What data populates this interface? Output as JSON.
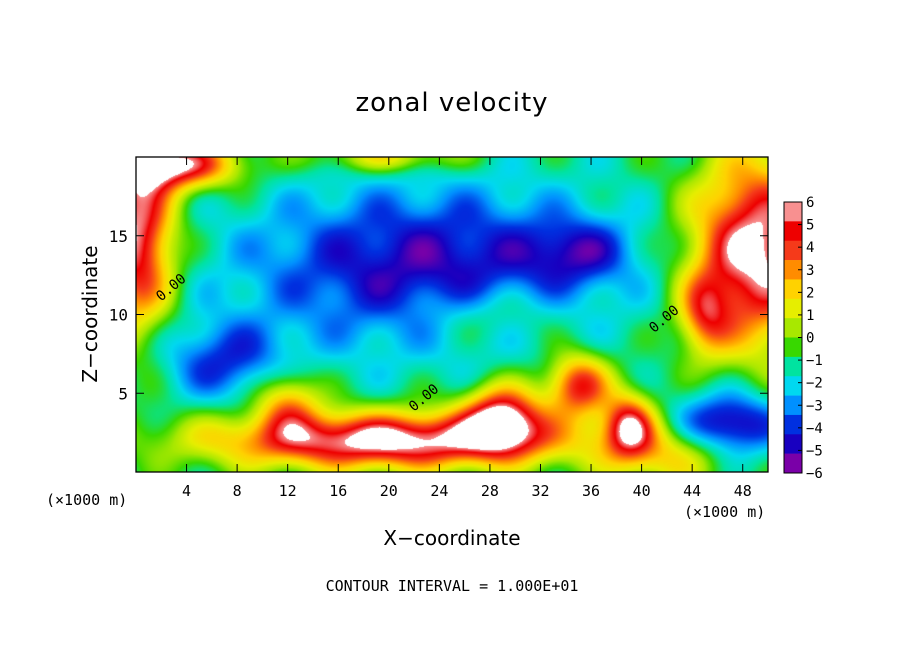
{
  "chart_data": {
    "type": "heatmap",
    "title": "zonal velocity",
    "xlabel": "X−coordinate",
    "ylabel": "Z−coordinate",
    "x_unit_label": "(×1000 m)",
    "x_ticks": [
      4,
      8,
      12,
      16,
      20,
      24,
      28,
      32,
      36,
      40,
      44,
      48
    ],
    "y_ticks": [
      5,
      10,
      15
    ],
    "xlim": [
      0,
      50
    ],
    "ylim": [
      0,
      20
    ],
    "colorbar": {
      "ticks": [
        "6",
        "5",
        "4",
        "3",
        "2",
        "1",
        "0",
        "−1",
        "−2",
        "−3",
        "−4",
        "−5",
        "−6"
      ],
      "values": [
        6,
        5,
        4,
        3,
        2,
        1,
        0,
        -1,
        -2,
        -3,
        -4,
        -5,
        -6
      ],
      "colors": [
        "#f89090",
        "#ee0000",
        "#f53a1a",
        "#ff8c00",
        "#ffd200",
        "#e6ee00",
        "#a8e800",
        "#38d800",
        "#00e3a0",
        "#00d8f0",
        "#0090ff",
        "#0030e0",
        "#1800c0",
        "#7a00a8"
      ]
    },
    "contour_labels": [
      {
        "text": "0.00",
        "x": 3,
        "y": 11.5
      },
      {
        "text": "0.00",
        "x": 23,
        "y": 4.5
      },
      {
        "text": "0.00",
        "x": 42,
        "y": 9.5
      }
    ],
    "footnote": "CONTOUR INTERVAL = 1.000E+01"
  }
}
